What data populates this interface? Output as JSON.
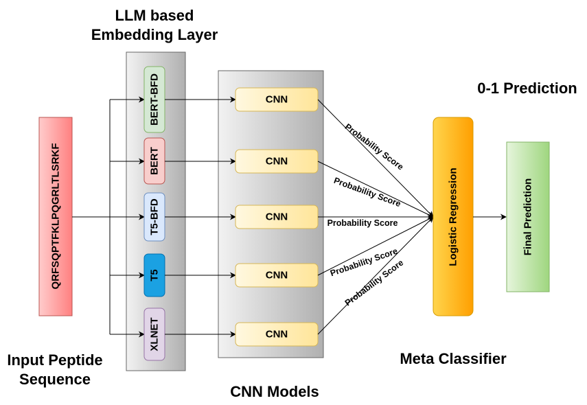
{
  "headings": {
    "embedding_title_line1": "LLM based",
    "embedding_title_line2": "Embedding Layer",
    "prediction_title": "0-1 Prediction",
    "input_title_line1": "Input Peptide",
    "input_title_line2": "Sequence",
    "cnn_title": "CNN Models",
    "meta_title": "Meta Classifier"
  },
  "input_sequence": "QRFSQPTFKLPQGRLTLSRKF",
  "embeddings": [
    {
      "label": "BERT-BFD",
      "fill": "#d5e8d4",
      "stroke": "#82b366"
    },
    {
      "label": "BERT",
      "fill": "#f8cecc",
      "stroke": "#b85450"
    },
    {
      "label": "T5-BFD",
      "fill": "#dae8fc",
      "stroke": "#6c8ebf"
    },
    {
      "label": "T5",
      "fill": "#1ba1e2",
      "stroke": "#006eaf"
    },
    {
      "label": "XLNET",
      "fill": "#e1d5e7",
      "stroke": "#9673a6"
    }
  ],
  "cnn_boxes": [
    "CNN",
    "CNN",
    "CNN",
    "CNN",
    "CNN"
  ],
  "edge_labels": [
    "Probability Score",
    "Probability Score",
    "Probability Score",
    "Probability Score",
    "Probability Score"
  ],
  "meta_model": "Logistic Regression",
  "final_output": "Final Prediction",
  "colors": {
    "input_fill": "#ff9a9a",
    "cnn_fill": "#fff2cc",
    "cnn_stroke": "#d6b656",
    "meta_fill": "#ffb000",
    "final_fill": "#b9e0a5",
    "panel_fill": "#d4d4d4"
  }
}
